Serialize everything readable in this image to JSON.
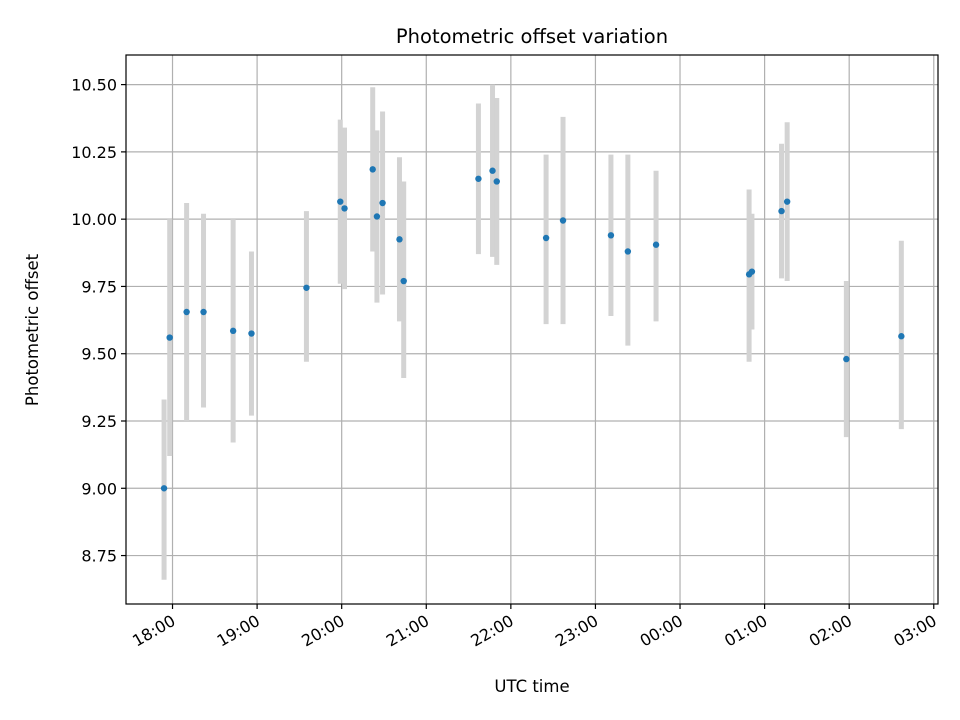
{
  "chart_data": {
    "type": "scatter",
    "title": "Photometric offset variation",
    "xlabel": "UTC time",
    "ylabel": "Photometric offset",
    "grid": true,
    "x_unit": "UTC time",
    "xlim": [
      "17:27",
      "03:03"
    ],
    "ylim": [
      8.57,
      10.61
    ],
    "x_ticks": [
      "18:00",
      "19:00",
      "20:00",
      "21:00",
      "22:00",
      "23:00",
      "00:00",
      "01:00",
      "02:00",
      "03:00"
    ],
    "y_ticks": [
      "8.75",
      "9.00",
      "9.25",
      "9.50",
      "9.75",
      "10.00",
      "10.25",
      "10.50"
    ],
    "colors": {
      "point": "#1f77b4",
      "errorbar": "#d3d3d3",
      "grid": "#b0b0b0"
    },
    "series": [
      {
        "points": [
          {
            "x": "17:54",
            "y": 9.0,
            "ylow": 8.66,
            "yhigh": 9.33
          },
          {
            "x": "17:58",
            "y": 9.56,
            "ylow": 9.12,
            "yhigh": 10.0
          },
          {
            "x": "18:10",
            "y": 9.655,
            "ylow": 9.25,
            "yhigh": 10.06
          },
          {
            "x": "18:22",
            "y": 9.655,
            "ylow": 9.3,
            "yhigh": 10.02
          },
          {
            "x": "18:43",
            "y": 9.585,
            "ylow": 9.17,
            "yhigh": 10.0
          },
          {
            "x": "18:56",
            "y": 9.575,
            "ylow": 9.27,
            "yhigh": 9.88
          },
          {
            "x": "19:35",
            "y": 9.745,
            "ylow": 9.47,
            "yhigh": 10.03
          },
          {
            "x": "19:59",
            "y": 10.065,
            "ylow": 9.76,
            "yhigh": 10.37
          },
          {
            "x": "20:02",
            "y": 10.04,
            "ylow": 9.74,
            "yhigh": 10.34
          },
          {
            "x": "20:22",
            "y": 10.185,
            "ylow": 9.88,
            "yhigh": 10.49
          },
          {
            "x": "20:25",
            "y": 10.01,
            "ylow": 9.69,
            "yhigh": 10.33
          },
          {
            "x": "20:29",
            "y": 10.06,
            "ylow": 9.72,
            "yhigh": 10.4
          },
          {
            "x": "20:41",
            "y": 9.925,
            "ylow": 9.62,
            "yhigh": 10.23
          },
          {
            "x": "20:44",
            "y": 9.77,
            "ylow": 9.41,
            "yhigh": 10.14
          },
          {
            "x": "21:37",
            "y": 10.15,
            "ylow": 9.87,
            "yhigh": 10.43
          },
          {
            "x": "21:47",
            "y": 10.18,
            "ylow": 9.86,
            "yhigh": 10.5
          },
          {
            "x": "21:50",
            "y": 10.14,
            "ylow": 9.83,
            "yhigh": 10.45
          },
          {
            "x": "22:25",
            "y": 9.93,
            "ylow": 9.61,
            "yhigh": 10.24
          },
          {
            "x": "22:37",
            "y": 9.995,
            "ylow": 9.61,
            "yhigh": 10.38
          },
          {
            "x": "23:11",
            "y": 9.94,
            "ylow": 9.64,
            "yhigh": 10.24
          },
          {
            "x": "23:23",
            "y": 9.88,
            "ylow": 9.53,
            "yhigh": 10.24
          },
          {
            "x": "23:43",
            "y": 9.905,
            "ylow": 9.62,
            "yhigh": 10.18
          },
          {
            "x": "00:49",
            "y": 9.795,
            "ylow": 9.47,
            "yhigh": 10.11
          },
          {
            "x": "00:51",
            "y": 9.805,
            "ylow": 9.59,
            "yhigh": 10.02
          },
          {
            "x": "01:12",
            "y": 10.03,
            "ylow": 9.78,
            "yhigh": 10.28
          },
          {
            "x": "01:16",
            "y": 10.065,
            "ylow": 9.77,
            "yhigh": 10.36
          },
          {
            "x": "01:58",
            "y": 9.48,
            "ylow": 9.19,
            "yhigh": 9.77
          },
          {
            "x": "02:37",
            "y": 9.565,
            "ylow": 9.22,
            "yhigh": 9.92
          }
        ]
      }
    ]
  }
}
